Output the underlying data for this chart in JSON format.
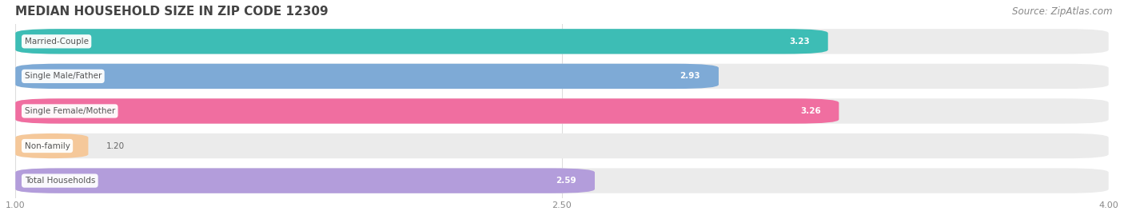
{
  "title": "MEDIAN HOUSEHOLD SIZE IN ZIP CODE 12309",
  "source": "Source: ZipAtlas.com",
  "categories": [
    "Married-Couple",
    "Single Male/Father",
    "Single Female/Mother",
    "Non-family",
    "Total Households"
  ],
  "values": [
    3.23,
    2.93,
    3.26,
    1.2,
    2.59
  ],
  "bar_colors": [
    "#3dbdb5",
    "#7eaad6",
    "#f06ea0",
    "#f5c89a",
    "#b39ddb"
  ],
  "bar_bg_color": "#ebebeb",
  "xmin": 1.0,
  "xmax": 4.0,
  "xticks": [
    1.0,
    2.5,
    4.0
  ],
  "title_fontsize": 11,
  "source_fontsize": 8.5,
  "bar_height": 0.72,
  "value_label_color_inside": "#ffffff",
  "value_label_color_outside": "#666666",
  "category_label_color": "#555555",
  "background_color": "#ffffff",
  "grid_color": "#dddddd"
}
